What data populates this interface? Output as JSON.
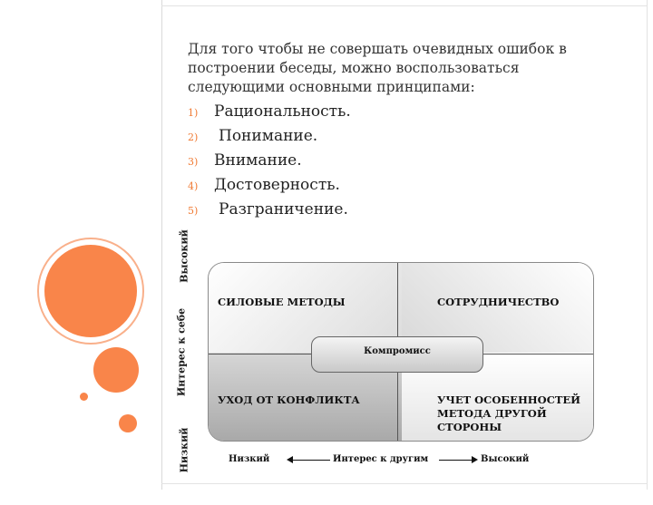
{
  "slide": {
    "intro": "Для того чтобы не совершать очевидных ошибок в построении беседы, можно воспользоваться следующими основными принципами:",
    "principles": [
      {
        "num": "1)",
        "text": "Рациональность."
      },
      {
        "num": "2)",
        "text": "Понимание."
      },
      {
        "num": "3)",
        "text": "Внимание."
      },
      {
        "num": "4)",
        "text": "Достоверность."
      },
      {
        "num": "5)",
        "text": "Разграничение."
      }
    ]
  },
  "diagram": {
    "y_axis": {
      "low": "Низкий",
      "label": "Интерес к себе",
      "high": "Высокий"
    },
    "x_axis": {
      "low": "Низкий",
      "label": "Интерес к другим",
      "high": "Высокий"
    },
    "quadrants": {
      "top_left": "СИЛОВЫЕ МЕТОДЫ",
      "top_right": "СОТРУДНИЧЕСТВО",
      "bottom_left": "УХОД ОТ КОНФЛИКТА",
      "bottom_right": "УЧЕТ ОСОБЕННОСТЕЙ МЕТОДА ДРУГОЙ СТОРОНЫ"
    },
    "center": "Компромисс"
  },
  "colors": {
    "accent": "#f9854a",
    "list_number": "#f07a33"
  }
}
